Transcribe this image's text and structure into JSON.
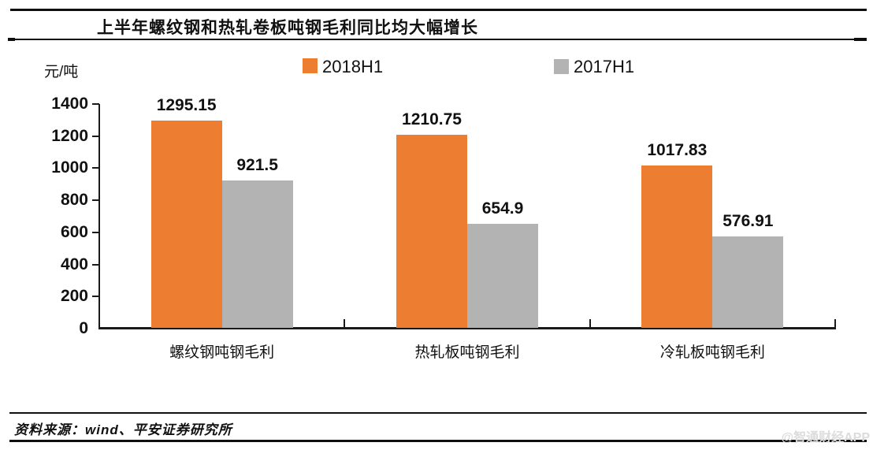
{
  "header": {
    "title": "上半年螺纹钢和热轧卷板吨钢毛利同比均大幅增长"
  },
  "chart_data": {
    "type": "bar",
    "title": "上半年螺纹钢和热轧卷板吨钢毛利同比均大幅增长",
    "unit_label": "元/吨",
    "categories": [
      "螺纹钢吨钢毛利",
      "热轧板吨钢毛利",
      "冷轧板吨钢毛利"
    ],
    "series": [
      {
        "name": "2018H1",
        "color": "#ED7D31",
        "values": [
          1295.15,
          1210.75,
          1017.83
        ]
      },
      {
        "name": "2017H1",
        "color": "#B3B3B3",
        "values": [
          921.5,
          654.9,
          576.91
        ]
      }
    ],
    "ylim": [
      0,
      1400
    ],
    "yticks": [
      0,
      200,
      400,
      600,
      800,
      1000,
      1200,
      1400
    ],
    "grid": false,
    "legend_position": "top",
    "axis_color": "#1a1a1a"
  },
  "footer": {
    "source": "资料来源：wind、平安证券研究所",
    "watermark": "@智通财经APP"
  }
}
